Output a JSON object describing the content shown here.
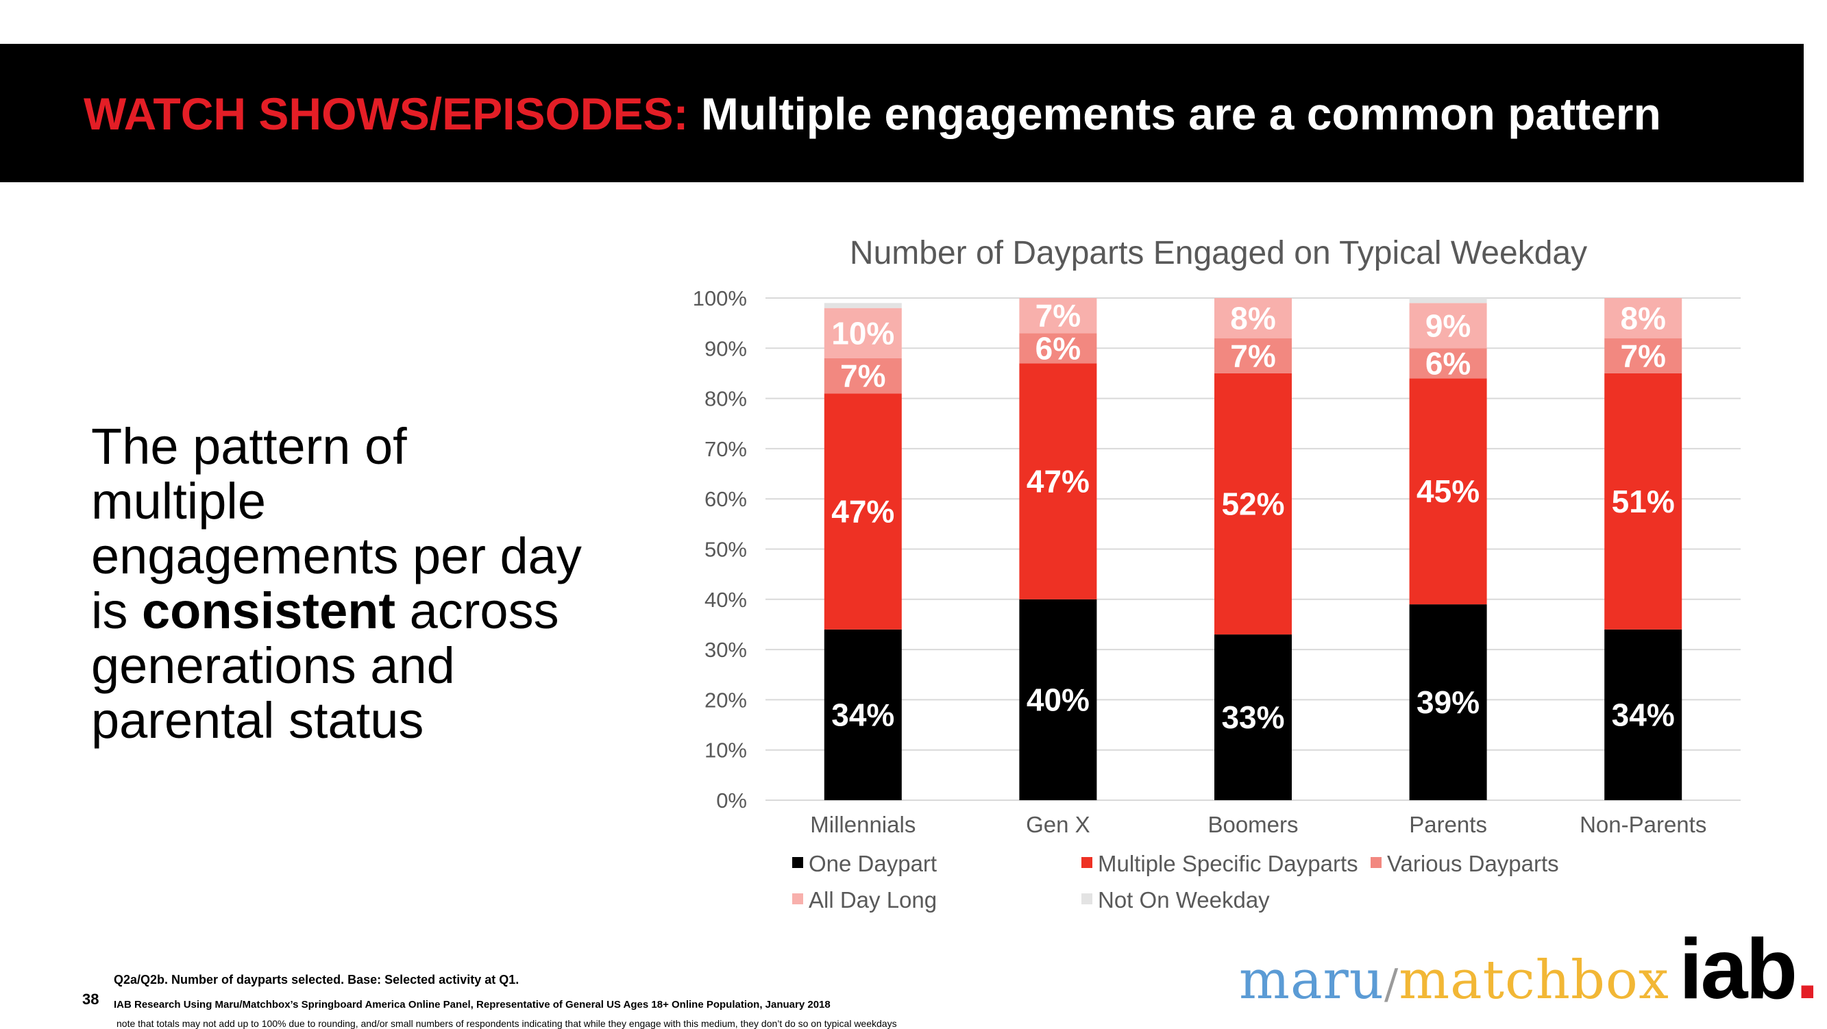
{
  "slide": {
    "title_accent": "WATCH SHOWS/EPISODES:",
    "title_main": "Multiple engagements are a common pattern",
    "body_pre": "The pattern of multiple engagements per day is ",
    "body_bold": "consistent",
    "body_post": " across generations and parental status",
    "page_number": "38",
    "source_line1": "Q2a/Q2b. Number of dayparts selected. Base: Selected activity at Q1.",
    "source_line2": "IAB Research Using Maru/Matchbox’s Springboard America Online Panel, Representative of General US Ages 18+ Online Population, January 2018",
    "source_note": "note that totals may not add up to 100% due to rounding, and/or small numbers of respondents indicating that while they engage with this medium, they don’t do so on typical weekdays",
    "logo_maru_1": "maru",
    "logo_maru_slash": "/",
    "logo_maru_2": "matchbox",
    "logo_iab": "iab",
    "logo_iab_dot": ".",
    "colors": {
      "accent": "#e41e26",
      "banner": "#000000"
    }
  },
  "chart_data": {
    "type": "bar",
    "stacked": true,
    "title": "Number of Dayparts Engaged on Typical Weekday",
    "categories": [
      "Millennials",
      "Gen X",
      "Boomers",
      "Parents",
      "Non-Parents"
    ],
    "ylim": [
      0,
      100
    ],
    "yticks": [
      "0%",
      "10%",
      "20%",
      "30%",
      "40%",
      "50%",
      "60%",
      "70%",
      "80%",
      "90%",
      "100%"
    ],
    "gridlines": true,
    "legend_position": "bottom",
    "series": [
      {
        "name": "One Daypart",
        "color": "#000000",
        "values": [
          34,
          40,
          33,
          39,
          34
        ],
        "labels": [
          "34%",
          "40%",
          "33%",
          "39%",
          "34%"
        ]
      },
      {
        "name": "Multiple Specific Dayparts",
        "color": "#ee3124",
        "values": [
          47,
          47,
          52,
          45,
          51
        ],
        "labels": [
          "47%",
          "47%",
          "52%",
          "45%",
          "51%"
        ]
      },
      {
        "name": "Various Dayparts",
        "color": "#f28880",
        "values": [
          7,
          6,
          7,
          6,
          7
        ],
        "labels": [
          "7%",
          "6%",
          "7%",
          "6%",
          "7%"
        ]
      },
      {
        "name": "All Day Long",
        "color": "#f8b0ac",
        "values": [
          10,
          7,
          8,
          9,
          8
        ],
        "labels": [
          "10%",
          "7%",
          "8%",
          "9%",
          "8%"
        ]
      },
      {
        "name": "Not On Weekday",
        "color": "#e3e3e3",
        "values": [
          1,
          0,
          0,
          1,
          0
        ],
        "labels": [
          "",
          "",
          "",
          "",
          ""
        ]
      }
    ]
  }
}
